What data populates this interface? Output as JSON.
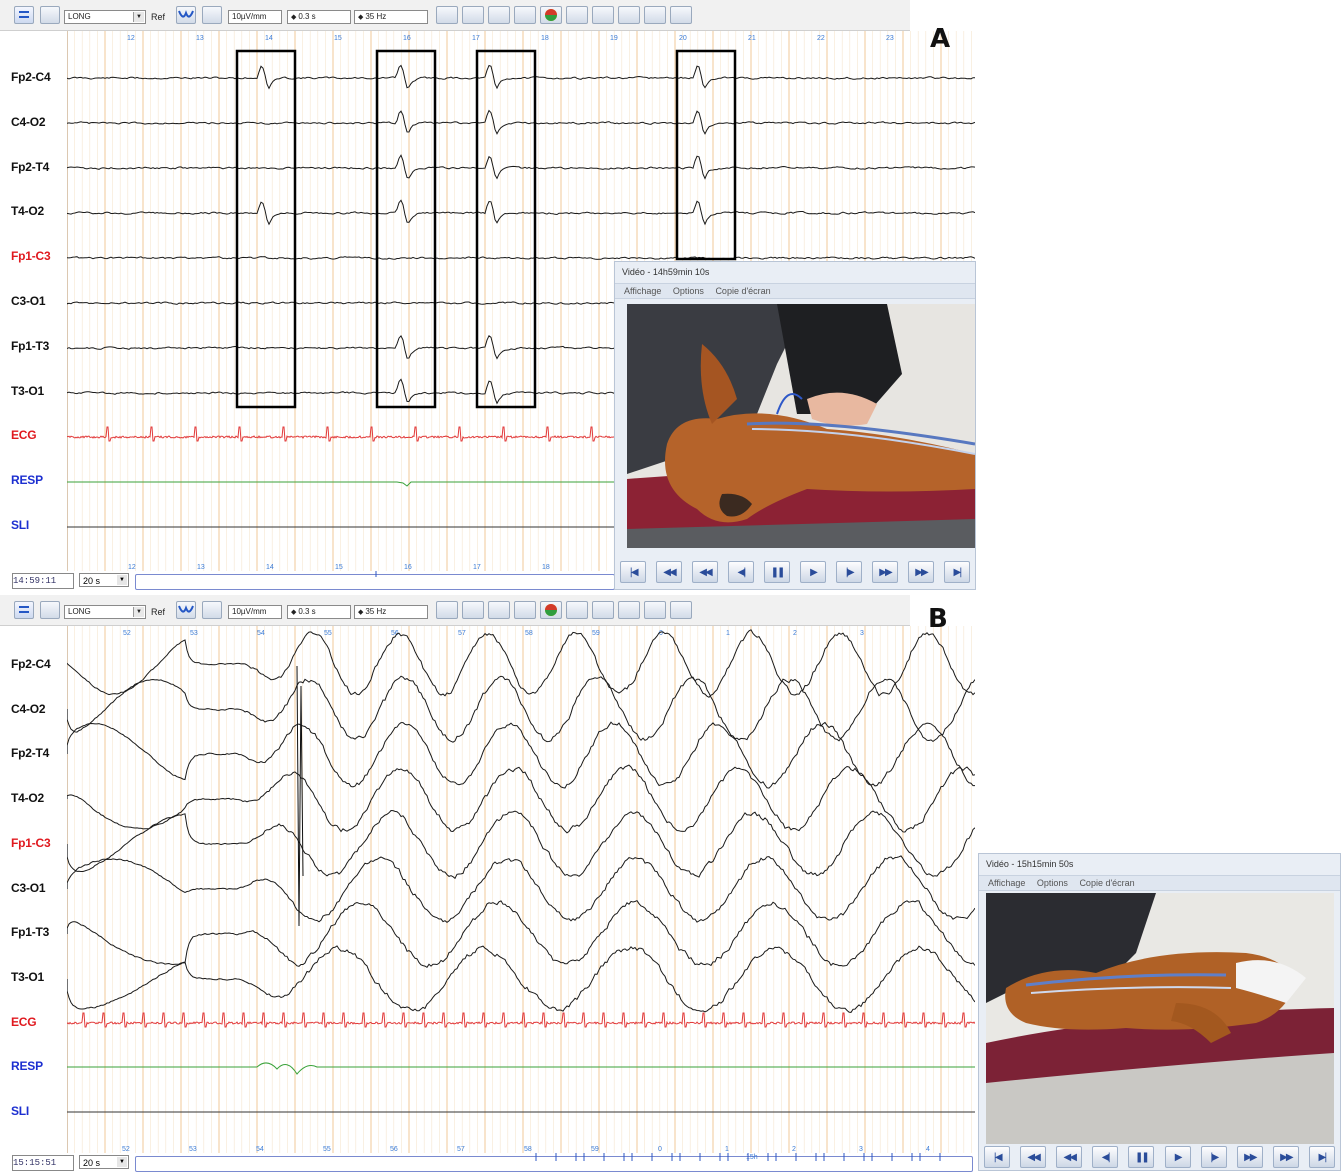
{
  "panels": [
    {
      "letter": "A",
      "toolbar": {
        "montage": "LONG",
        "ref": "Ref",
        "sensitivity": "10µV/mm",
        "time_constant": "0.3 s",
        "filter": "35 Hz"
      },
      "time_marks": [
        "12",
        "13",
        "14",
        "15",
        "16",
        "17",
        "18",
        "19",
        "20",
        "21",
        "22",
        "23"
      ],
      "bottom_marks": [
        "12",
        "13",
        "14",
        "15",
        "16",
        "17",
        "18"
      ],
      "clock": "14:59:11",
      "window": "20 s",
      "video": {
        "title": "Vidéo - 14h59min 10s",
        "menu": [
          "Affichage",
          "Options",
          "Copie d'écran"
        ]
      }
    },
    {
      "letter": "B",
      "toolbar": {
        "montage": "LONG",
        "ref": "Ref",
        "sensitivity": "10µV/mm",
        "time_constant": "0.3 s",
        "filter": "35 Hz"
      },
      "time_marks": [
        "52",
        "53",
        "54",
        "55",
        "56",
        "57",
        "58",
        "59",
        "0",
        "1",
        "2",
        "3"
      ],
      "bottom_marks": [
        "52",
        "53",
        "54",
        "55",
        "56",
        "57",
        "58",
        "59",
        "0",
        "1",
        "2",
        "3",
        "4"
      ],
      "bottom_hour_mark": "15h",
      "clock": "15:15:51",
      "window": "20 s",
      "video": {
        "title": "Vidéo - 15h15min 50s",
        "menu": [
          "Affichage",
          "Options",
          "Copie d'écran"
        ]
      }
    }
  ],
  "channels": [
    {
      "label": "Fp2-C4",
      "color": "#111111"
    },
    {
      "label": "C4-O2",
      "color": "#111111"
    },
    {
      "label": "Fp2-T4",
      "color": "#111111"
    },
    {
      "label": "T4-O2",
      "color": "#111111"
    },
    {
      "label": "Fp1-C3",
      "color": "#e0191f"
    },
    {
      "label": "C3-O1",
      "color": "#111111"
    },
    {
      "label": "Fp1-T3",
      "color": "#111111"
    },
    {
      "label": "T3-O1",
      "color": "#111111"
    },
    {
      "label": "ECG",
      "color": "#e0191f"
    },
    {
      "label": "RESP",
      "color": "#1c2fd0"
    },
    {
      "label": "SLI",
      "color": "#1c2fd0"
    }
  ],
  "trace_colors": {
    "eeg": "#1a1a1a",
    "ecg": "#e23a3a",
    "resp": "#3aa23a",
    "sli": "#333333",
    "grid_major": "#f0c99a",
    "grid_minor": "#f6e6cf",
    "time_mark": "#3b7bd6"
  },
  "icons": [
    "montage-menu-icon",
    "brain-icon",
    "ref-icon",
    "wave-icon",
    "electrode-icon",
    "sync-icon",
    "page-layout-icon",
    "split-icon",
    "chain-icon",
    "color-icon",
    "film-icon",
    "camera-icon",
    "edit-icon",
    "save-icon",
    "print-icon"
  ]
}
